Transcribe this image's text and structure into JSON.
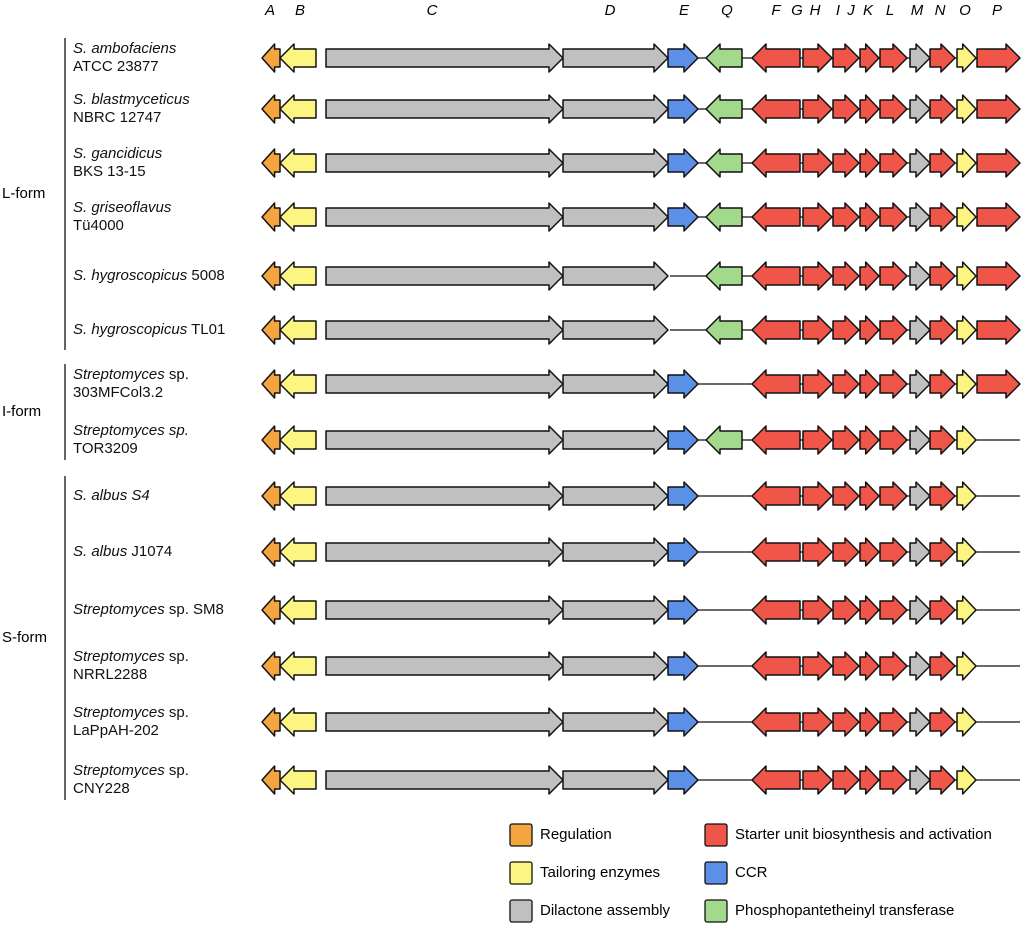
{
  "genes": [
    "A",
    "B",
    "C",
    "D",
    "E",
    "Q",
    "F",
    "G",
    "H",
    "I",
    "J",
    "K",
    "L",
    "M",
    "N",
    "O",
    "P"
  ],
  "groups": [
    {
      "name": "L-form",
      "strains": [
        [
          [
            {
              "text": "S. ambofaciens",
              "style": "italic"
            }
          ],
          [
            {
              "text": "ATCC 23877",
              "style": "normal"
            }
          ]
        ],
        [
          [
            {
              "text": "S. blastmyceticus",
              "style": "italic"
            }
          ],
          [
            {
              "text": "NBRC 12747",
              "style": "normal"
            }
          ]
        ],
        [
          [
            {
              "text": "S. gancidicus",
              "style": "italic"
            }
          ],
          [
            {
              "text": "BKS 13-15",
              "style": "normal"
            }
          ]
        ],
        [
          [
            {
              "text": "S. griseoflavus",
              "style": "italic"
            }
          ],
          [
            {
              "text": "Tü4000",
              "style": "normal"
            }
          ]
        ],
        [
          [
            {
              "text": "S. hygroscopicus",
              "style": "italic"
            },
            {
              "text": " 5008",
              "style": "normal"
            }
          ]
        ],
        [
          [
            {
              "text": "S. hygroscopicus",
              "style": "italic"
            },
            {
              "text": " TL01",
              "style": "normal"
            }
          ]
        ]
      ]
    },
    {
      "name": "I-form",
      "strains": [
        [
          [
            {
              "text": "Streptomyces",
              "style": "italic"
            },
            {
              "text": " sp.",
              "style": "normal"
            }
          ],
          [
            {
              "text": "303MFCol3.2",
              "style": "normal"
            }
          ]
        ],
        [
          [
            {
              "text": "Streptomyces sp.",
              "style": "italic"
            }
          ],
          [
            {
              "text": "TOR3209",
              "style": "normal"
            }
          ]
        ]
      ]
    },
    {
      "name": "S-form",
      "strains": [
        [
          [
            {
              "text": "S. albus S4",
              "style": "italic"
            }
          ]
        ],
        [
          [
            {
              "text": "S. albus",
              "style": "italic"
            },
            {
              "text": " J1074",
              "style": "normal"
            }
          ]
        ],
        [
          [
            {
              "text": "Streptomyces",
              "style": "italic"
            },
            {
              "text": " sp. SM8",
              "style": "normal"
            }
          ]
        ],
        [
          [
            {
              "text": "Streptomyces",
              "style": "italic"
            },
            {
              "text": " sp.",
              "style": "normal"
            }
          ],
          [
            {
              "text": "NRRL2288",
              "style": "normal"
            }
          ]
        ],
        [
          [
            {
              "text": "Streptomyces",
              "style": "italic"
            },
            {
              "text": " sp.",
              "style": "normal"
            }
          ],
          [
            {
              "text": "LaPpAH-202",
              "style": "normal"
            }
          ]
        ],
        [
          [
            {
              "text": "Streptomyces",
              "style": "italic"
            },
            {
              "text": " sp.",
              "style": "normal"
            }
          ],
          [
            {
              "text": "CNY228",
              "style": "normal"
            }
          ]
        ]
      ]
    }
  ],
  "legend": [
    {
      "label": "Regulation",
      "color": "#f5a53f"
    },
    {
      "label": "Tailoring enzymes",
      "color": "#fdf582"
    },
    {
      "label": "Dilactone assembly",
      "color": "#c0c0c0"
    },
    {
      "label": "Starter unit biosynthesis and activation",
      "color": "#f0554a"
    },
    {
      "label": "CCR",
      "color": "#5b8fe8"
    },
    {
      "label": "Phosphopantetheinyl transferase",
      "color": "#a2d98c"
    }
  ]
}
